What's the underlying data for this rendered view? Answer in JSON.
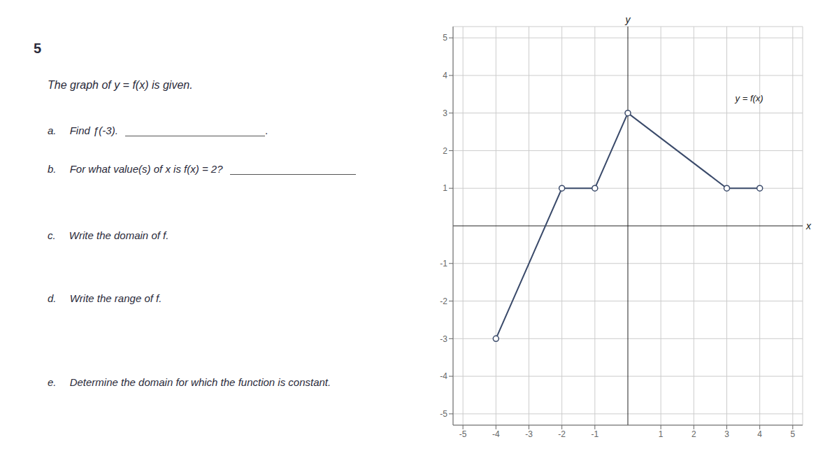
{
  "chart_data": {
    "type": "line",
    "title": "The graph of y = f(x) is given.",
    "annotations": [
      "5",
      "a.  Find ƒ(-3).",
      ".",
      "b.  For what value(s) of x is f(x) = 2?",
      "c.  Write the domain of f.",
      "d.  Write the range of f.",
      "e.  Determine the domain for which the function is constant."
    ],
    "x": [
      -4,
      -2,
      -1,
      0,
      3,
      4
    ],
    "series": [
      {
        "name": "y = f(x)",
        "color": "#3a4a6a",
        "values": [
          -3,
          1,
          1,
          3,
          1,
          1
        ],
        "marker": "open circle"
      }
    ],
    "xlabel": "x",
    "ylabel": "y",
    "xlim": [
      -5.3,
      5.3
    ],
    "ylim": [
      -5.3,
      5.3
    ],
    "xticks": [
      -5,
      -4,
      -3,
      -2,
      -1,
      1,
      2,
      3,
      4,
      5
    ],
    "yticks": [
      -5,
      -4,
      -3,
      -2,
      -1,
      1,
      2,
      3,
      4,
      5
    ],
    "grid": true
  }
}
